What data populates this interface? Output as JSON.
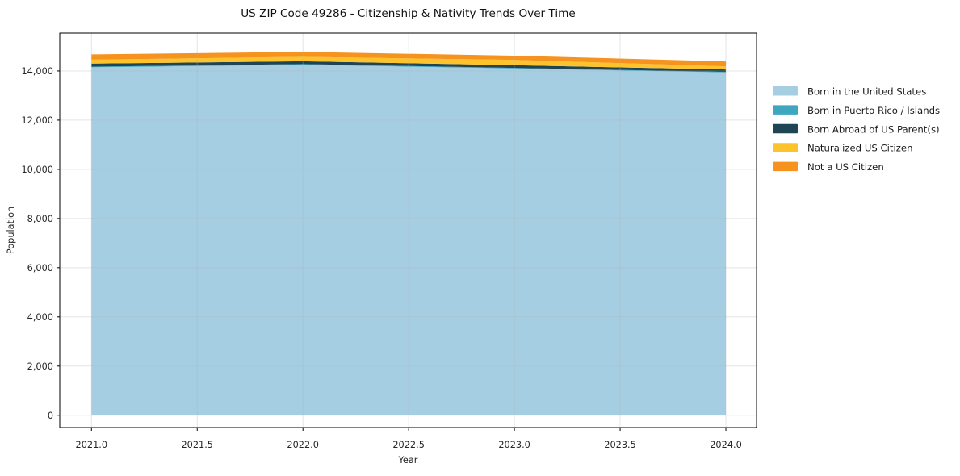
{
  "figure": {
    "background": "#ffffff",
    "text_color": "#1a1a1a"
  },
  "chart_data": {
    "type": "area",
    "stacked": true,
    "title": "US ZIP Code 49286 - Citizenship & Nativity Trends Over Time",
    "xlabel": "Year",
    "ylabel": "Population",
    "x": [
      2021,
      2022,
      2023,
      2024
    ],
    "series": [
      {
        "name": "Born in the United States",
        "color": "#a6cee3",
        "values": [
          14150,
          14250,
          14100,
          13940
        ]
      },
      {
        "name": "Born in Puerto Rico / Islands",
        "color": "#3fa6c0",
        "values": [
          30,
          30,
          25,
          20
        ]
      },
      {
        "name": "Born Abroad of US Parent(s)",
        "color": "#1f4454",
        "values": [
          120,
          115,
          110,
          100
        ]
      },
      {
        "name": "Naturalized US Citizen",
        "color": "#fcc32d",
        "values": [
          160,
          180,
          215,
          130
        ]
      },
      {
        "name": "Not a US Citizen",
        "color": "#f6921e",
        "values": [
          215,
          200,
          170,
          200
        ]
      }
    ],
    "x_ticks": [
      2021.0,
      2021.5,
      2022.0,
      2022.5,
      2023.0,
      2023.5,
      2024.0
    ],
    "x_tick_labels": [
      "2021.0",
      "2021.5",
      "2022.0",
      "2022.5",
      "2023.0",
      "2023.5",
      "2024.0"
    ],
    "y_ticks": [
      0,
      2000,
      4000,
      6000,
      8000,
      10000,
      12000,
      14000
    ],
    "y_tick_labels": [
      "0",
      "2,000",
      "4,000",
      "6,000",
      "8,000",
      "10,000",
      "12,000",
      "14,000"
    ],
    "xlim": [
      2020.85,
      2024.145
    ],
    "ylim": [
      -500,
      15540
    ],
    "grid": true,
    "grid_color": "rgba(178,178,178,0.35)",
    "spine_color": "#000000",
    "tick_color": "#262626",
    "legend_position": "right"
  }
}
